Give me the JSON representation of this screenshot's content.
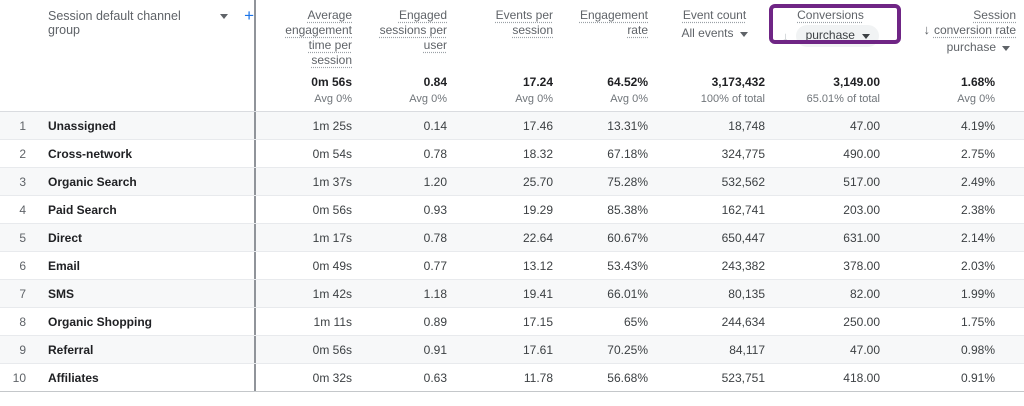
{
  "colors": {
    "annotation_purple": "#6f2585",
    "add_button_blue": "#1a73e8",
    "zebra_row": "#f7f8f9",
    "pill_background": "#f1f3f4"
  },
  "icons": {
    "add": "+",
    "sort_descending": "↓"
  },
  "table": {
    "dimension_header": {
      "label": "Session default channel group"
    },
    "columns": [
      {
        "id": "avg_engagement_time",
        "label": "Average engagement time per session",
        "total": "0m 56s",
        "subtotal": "Avg 0%"
      },
      {
        "id": "engaged_sessions_per_user",
        "label": "Engaged sessions per user",
        "total": "0.84",
        "subtotal": "Avg 0%"
      },
      {
        "id": "events_per_session",
        "label": "Events per session",
        "total": "17.24",
        "subtotal": "Avg 0%"
      },
      {
        "id": "engagement_rate",
        "label": "Engagement rate",
        "total": "64.52%",
        "subtotal": "Avg 0%"
      },
      {
        "id": "event_count",
        "label": "Event count",
        "dropdown": "All events",
        "total": "3,173,432",
        "subtotal": "100% of total"
      },
      {
        "id": "conversions",
        "label": "Conversions",
        "dropdown": "purchase",
        "highlighted": true,
        "total": "3,149.00",
        "subtotal": "65.01% of total"
      },
      {
        "id": "session_conversion_rate",
        "label_line1": "Session",
        "label_line2": "conversion rate",
        "dropdown": "purchase",
        "sorted": "descending",
        "total": "1.68%",
        "subtotal": "Avg 0%"
      }
    ],
    "rows": [
      {
        "rank": "1",
        "channel": "Unassigned",
        "values": [
          "1m 25s",
          "0.14",
          "17.46",
          "13.31%",
          "18,748",
          "47.00",
          "4.19%"
        ]
      },
      {
        "rank": "2",
        "channel": "Cross-network",
        "values": [
          "0m 54s",
          "0.78",
          "18.32",
          "67.18%",
          "324,775",
          "490.00",
          "2.75%"
        ]
      },
      {
        "rank": "3",
        "channel": "Organic Search",
        "values": [
          "1m 37s",
          "1.20",
          "25.70",
          "75.28%",
          "532,562",
          "517.00",
          "2.49%"
        ]
      },
      {
        "rank": "4",
        "channel": "Paid Search",
        "values": [
          "0m 56s",
          "0.93",
          "19.29",
          "85.38%",
          "162,741",
          "203.00",
          "2.38%"
        ]
      },
      {
        "rank": "5",
        "channel": "Direct",
        "values": [
          "1m 17s",
          "0.78",
          "22.64",
          "60.67%",
          "650,447",
          "631.00",
          "2.14%"
        ]
      },
      {
        "rank": "6",
        "channel": "Email",
        "values": [
          "0m 49s",
          "0.77",
          "13.12",
          "53.43%",
          "243,382",
          "378.00",
          "2.03%"
        ]
      },
      {
        "rank": "7",
        "channel": "SMS",
        "values": [
          "1m 42s",
          "1.18",
          "19.41",
          "66.01%",
          "80,135",
          "82.00",
          "1.99%"
        ]
      },
      {
        "rank": "8",
        "channel": "Organic Shopping",
        "values": [
          "1m 11s",
          "0.89",
          "17.15",
          "65%",
          "244,634",
          "250.00",
          "1.75%"
        ]
      },
      {
        "rank": "9",
        "channel": "Referral",
        "values": [
          "0m 56s",
          "0.91",
          "17.61",
          "70.25%",
          "84,117",
          "47.00",
          "0.98%"
        ]
      },
      {
        "rank": "10",
        "channel": "Affiliates",
        "values": [
          "0m 32s",
          "0.63",
          "11.78",
          "56.68%",
          "523,751",
          "418.00",
          "0.91%"
        ]
      }
    ]
  }
}
